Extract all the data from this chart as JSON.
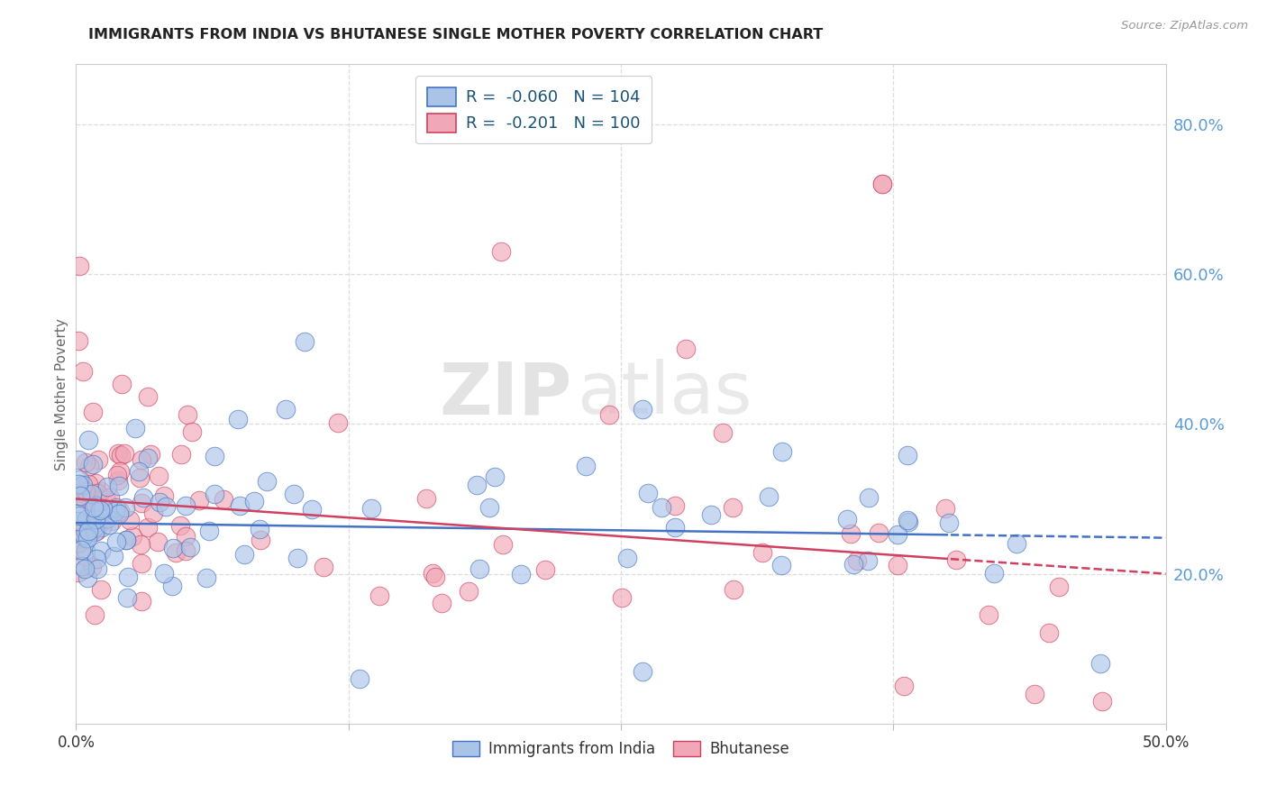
{
  "title": "IMMIGRANTS FROM INDIA VS BHUTANESE SINGLE MOTHER POVERTY CORRELATION CHART",
  "source": "Source: ZipAtlas.com",
  "ylabel": "Single Mother Poverty",
  "right_yticks": [
    "80.0%",
    "60.0%",
    "40.0%",
    "20.0%"
  ],
  "right_ytick_vals": [
    0.8,
    0.6,
    0.4,
    0.2
  ],
  "legend_india": {
    "R": "-0.060",
    "N": "104",
    "label": "Immigrants from India"
  },
  "legend_bhutan": {
    "R": "-0.201",
    "N": "100",
    "label": "Bhutanese"
  },
  "xmin": 0.0,
  "xmax": 0.5,
  "ymin": 0.0,
  "ymax": 0.88,
  "color_india": "#aac4e8",
  "color_bhutan": "#f0a8b8",
  "line_india": "#4472c4",
  "line_bhutan": "#d04060",
  "background": "#ffffff",
  "watermark_zip": "ZIP",
  "watermark_atlas": "atlas",
  "grid_color": "#dddddd",
  "title_color": "#222222",
  "source_color": "#999999",
  "ylabel_color": "#666666",
  "ytick_color": "#5b9bd5",
  "xtick_color": "#333333",
  "legend_text_color": "#1a5276"
}
